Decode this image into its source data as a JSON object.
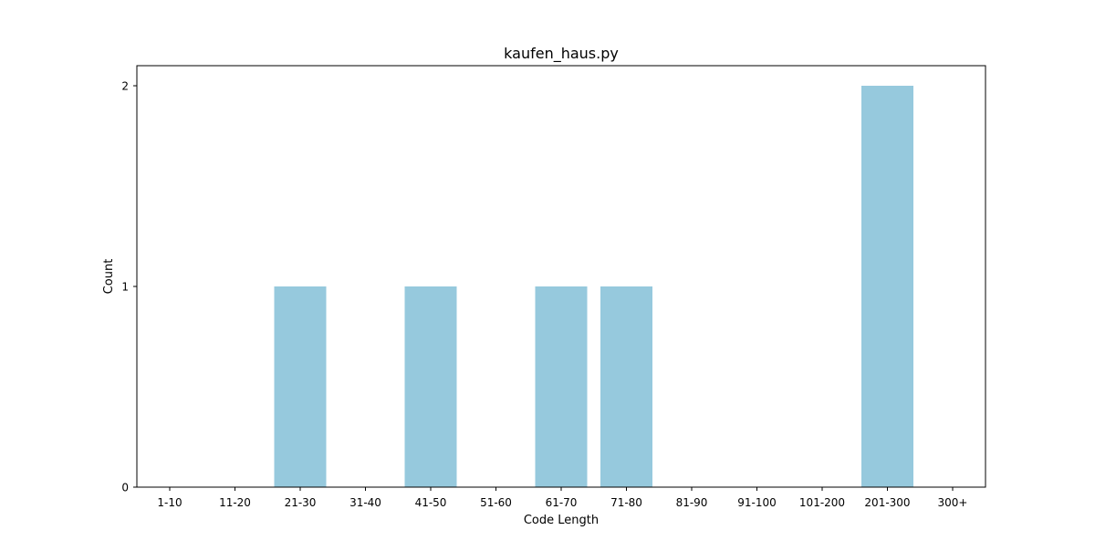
{
  "chart_data": {
    "type": "bar",
    "title": "kaufen_haus.py",
    "xlabel": "Code Length",
    "ylabel": "Count",
    "categories": [
      "1-10",
      "11-20",
      "21-30",
      "31-40",
      "41-50",
      "51-60",
      "61-70",
      "71-80",
      "81-90",
      "91-100",
      "101-200",
      "201-300",
      "300+"
    ],
    "values": [
      0,
      0,
      1,
      0,
      1,
      0,
      1,
      1,
      0,
      0,
      0,
      2,
      0
    ],
    "yticks": [
      0,
      1,
      2
    ],
    "ylim": [
      0,
      2.1
    ],
    "bar_color": "#96c9dd",
    "grid": false,
    "legend": false
  }
}
